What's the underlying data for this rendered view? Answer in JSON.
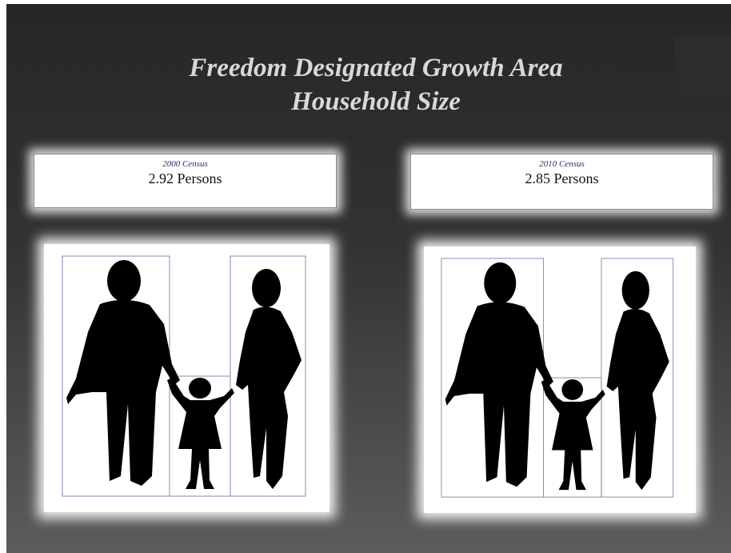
{
  "title": {
    "line1": "Freedom Designated Growth Area",
    "line2": "Household Size"
  },
  "panels": [
    {
      "label": "2000 Census",
      "value": "2.92 Persons"
    },
    {
      "label": "2010 Census",
      "value": "2.85 Persons"
    }
  ]
}
